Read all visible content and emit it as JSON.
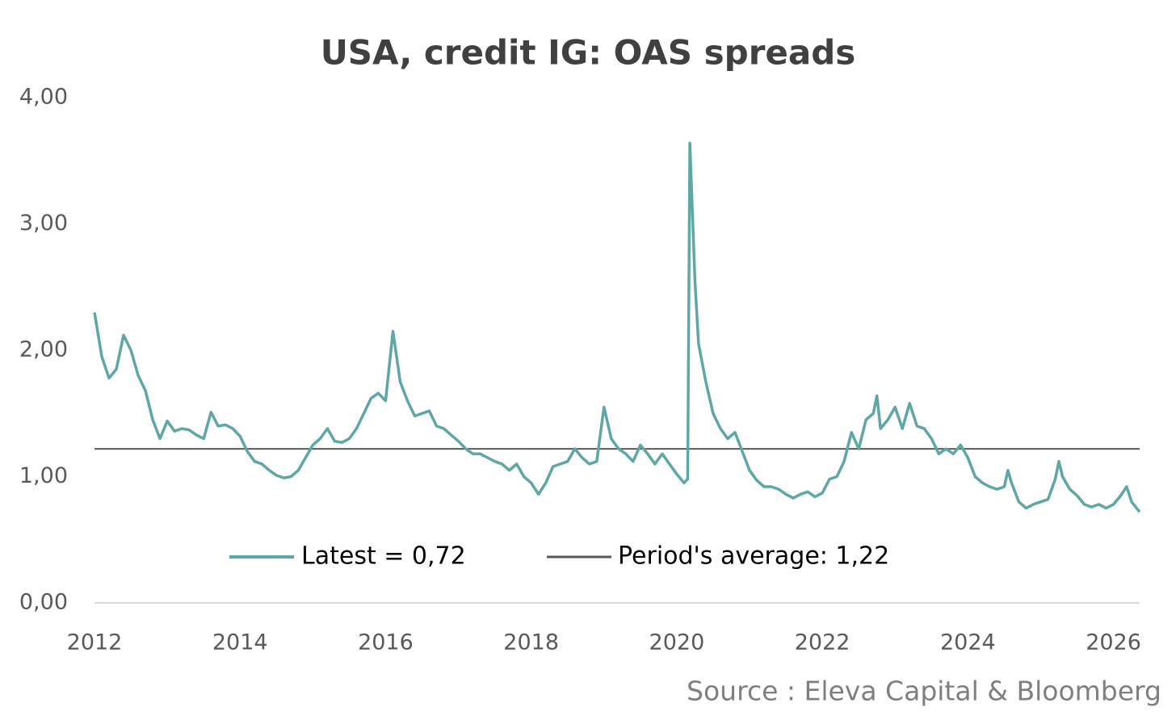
{
  "chart_data": {
    "type": "line",
    "title": "USA, credit IG: OAS spreads",
    "source": "Source : Eleva Capital & Bloomberg",
    "x": [
      2012.0,
      2012.1,
      2012.2,
      2012.3,
      2012.4,
      2012.5,
      2012.6,
      2012.7,
      2012.8,
      2012.9,
      2013.0,
      2013.1,
      2013.2,
      2013.3,
      2013.4,
      2013.5,
      2013.6,
      2013.7,
      2013.8,
      2013.9,
      2014.0,
      2014.1,
      2014.2,
      2014.3,
      2014.4,
      2014.5,
      2014.6,
      2014.7,
      2014.8,
      2014.9,
      2015.0,
      2015.1,
      2015.2,
      2015.3,
      2015.4,
      2015.5,
      2015.6,
      2015.7,
      2015.8,
      2015.9,
      2016.0,
      2016.1,
      2016.2,
      2016.3,
      2016.4,
      2016.5,
      2016.6,
      2016.7,
      2016.8,
      2016.9,
      2017.0,
      2017.1,
      2017.2,
      2017.3,
      2017.4,
      2017.5,
      2017.6,
      2017.7,
      2017.8,
      2017.9,
      2018.0,
      2018.1,
      2018.2,
      2018.3,
      2018.4,
      2018.5,
      2018.6,
      2018.7,
      2018.8,
      2018.9,
      2019.0,
      2019.1,
      2019.2,
      2019.3,
      2019.4,
      2019.5,
      2019.6,
      2019.7,
      2019.8,
      2019.9,
      2020.0,
      2020.1,
      2020.15,
      2020.18,
      2020.25,
      2020.3,
      2020.4,
      2020.5,
      2020.6,
      2020.7,
      2020.8,
      2020.9,
      2021.0,
      2021.1,
      2021.2,
      2021.3,
      2021.4,
      2021.5,
      2021.6,
      2021.7,
      2021.8,
      2021.9,
      2022.0,
      2022.1,
      2022.2,
      2022.3,
      2022.4,
      2022.5,
      2022.6,
      2022.7,
      2022.75,
      2022.8,
      2022.9,
      2023.0,
      2023.1,
      2023.2,
      2023.3,
      2023.4,
      2023.5,
      2023.6,
      2023.7,
      2023.8,
      2023.9,
      2024.0,
      2024.1,
      2024.2,
      2024.3,
      2024.4,
      2024.5,
      2024.55,
      2024.6,
      2024.7,
      2024.8,
      2024.9,
      2025.0,
      2025.1,
      2025.2,
      2025.25,
      2025.3,
      2025.4,
      2025.5,
      2025.6,
      2025.7,
      2025.8,
      2025.9,
      2026.0,
      2026.1,
      2026.18,
      2026.25,
      2026.36
    ],
    "series": [
      {
        "name": "Latest =  0,72",
        "color": "#5fa7a5",
        "values": [
          2.3,
          1.95,
          1.78,
          1.85,
          2.12,
          2.0,
          1.8,
          1.68,
          1.45,
          1.3,
          1.44,
          1.36,
          1.38,
          1.37,
          1.33,
          1.3,
          1.51,
          1.4,
          1.41,
          1.38,
          1.32,
          1.2,
          1.12,
          1.1,
          1.05,
          1.01,
          0.99,
          1.0,
          1.05,
          1.15,
          1.25,
          1.3,
          1.38,
          1.28,
          1.27,
          1.3,
          1.38,
          1.5,
          1.62,
          1.66,
          1.6,
          2.15,
          1.75,
          1.6,
          1.48,
          1.5,
          1.52,
          1.4,
          1.38,
          1.33,
          1.28,
          1.22,
          1.18,
          1.18,
          1.15,
          1.12,
          1.1,
          1.05,
          1.1,
          1.0,
          0.95,
          0.86,
          0.95,
          1.08,
          1.1,
          1.12,
          1.22,
          1.15,
          1.1,
          1.12,
          1.55,
          1.3,
          1.22,
          1.18,
          1.12,
          1.25,
          1.18,
          1.1,
          1.18,
          1.1,
          1.02,
          0.95,
          0.98,
          3.64,
          2.55,
          2.05,
          1.75,
          1.5,
          1.38,
          1.3,
          1.35,
          1.2,
          1.05,
          0.97,
          0.92,
          0.92,
          0.9,
          0.86,
          0.83,
          0.86,
          0.88,
          0.84,
          0.87,
          0.98,
          1.0,
          1.12,
          1.35,
          1.22,
          1.45,
          1.5,
          1.64,
          1.38,
          1.45,
          1.55,
          1.38,
          1.58,
          1.4,
          1.38,
          1.3,
          1.18,
          1.22,
          1.18,
          1.25,
          1.15,
          1.0,
          0.95,
          0.92,
          0.9,
          0.92,
          1.05,
          0.95,
          0.8,
          0.75,
          0.78,
          0.8,
          0.82,
          0.98,
          1.12,
          1.0,
          0.9,
          0.85,
          0.78,
          0.76,
          0.78,
          0.75,
          0.78,
          0.85,
          0.92,
          0.8,
          0.72
        ]
      }
    ],
    "reference_line": {
      "name": "Period's average: 1,22",
      "value": 1.22,
      "color": "#595959"
    },
    "xlim": [
      2012,
      2026.36
    ],
    "xticks": [
      2012,
      2014,
      2016,
      2018,
      2020,
      2022,
      2024,
      2026
    ],
    "ylim": [
      0,
      4
    ],
    "yticks": [
      {
        "value": 0,
        "label": "0,00"
      },
      {
        "value": 1,
        "label": "1,00"
      },
      {
        "value": 2,
        "label": "2,00"
      },
      {
        "value": 3,
        "label": "3,00"
      },
      {
        "value": 4,
        "label": "4,00"
      }
    ]
  }
}
